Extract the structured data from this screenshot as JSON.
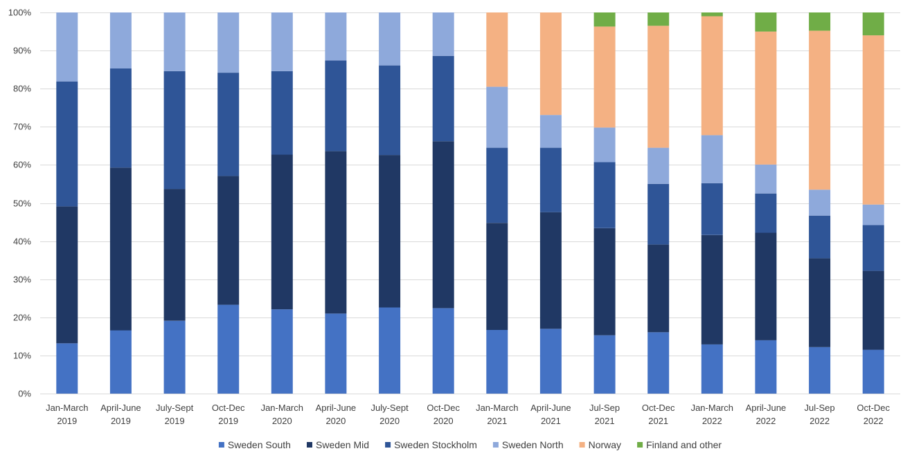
{
  "chart_data": {
    "type": "bar",
    "stacked": true,
    "percent_stacked": true,
    "categories": [
      [
        "Jan-March",
        "2019"
      ],
      [
        "April-June",
        "2019"
      ],
      [
        "July-Sept",
        "2019"
      ],
      [
        "Oct-Dec",
        "2019"
      ],
      [
        "Jan-March",
        "2020"
      ],
      [
        "April-June",
        "2020"
      ],
      [
        "July-Sept",
        "2020"
      ],
      [
        "Oct-Dec",
        "2020"
      ],
      [
        "Jan-March",
        "2021"
      ],
      [
        "April-June",
        "2021"
      ],
      [
        "Jul-Sep",
        "2021"
      ],
      [
        "Oct-Dec",
        "2021"
      ],
      [
        "Jan-March",
        "2022"
      ],
      [
        "April-June",
        "2022"
      ],
      [
        "Jul-Sep",
        "2022"
      ],
      [
        "Oct-Dec",
        "2022"
      ]
    ],
    "series": [
      {
        "name": "Sweden South",
        "color": "#4472C4",
        "values": [
          13.2,
          16.6,
          19.1,
          23.3,
          22.1,
          21.0,
          22.6,
          22.4,
          16.7,
          17.0,
          15.3,
          16.1,
          12.9,
          14.0,
          12.2,
          11.5
        ]
      },
      {
        "name": "Sweden Mid",
        "color": "#203864",
        "values": [
          35.9,
          42.7,
          34.6,
          33.8,
          40.6,
          42.6,
          40.0,
          43.8,
          28.1,
          30.6,
          28.1,
          23.0,
          28.7,
          28.2,
          23.3,
          20.7
        ]
      },
      {
        "name": "Sweden Stockholm",
        "color": "#2F5597",
        "values": [
          32.8,
          26.0,
          30.9,
          27.1,
          21.9,
          23.8,
          23.5,
          22.4,
          19.7,
          16.9,
          17.3,
          15.9,
          13.6,
          10.3,
          11.2,
          12.0
        ]
      },
      {
        "name": "Sweden North",
        "color": "#8EA9DB",
        "values": [
          18.1,
          14.7,
          15.4,
          15.8,
          15.4,
          12.6,
          13.9,
          11.4,
          16.0,
          8.6,
          9.1,
          9.5,
          12.6,
          7.6,
          6.8,
          5.4
        ]
      },
      {
        "name": "Norway",
        "color": "#F4B183",
        "values": [
          0,
          0,
          0,
          0,
          0,
          0,
          0,
          0,
          19.5,
          26.9,
          26.5,
          32.0,
          31.2,
          34.9,
          41.7,
          44.4
        ]
      },
      {
        "name": "Finland and other",
        "color": "#70AD47",
        "values": [
          0,
          0,
          0,
          0,
          0,
          0,
          0,
          0,
          0,
          0,
          3.7,
          3.5,
          1.0,
          5.0,
          4.8,
          6.0
        ]
      }
    ],
    "ylim": [
      0,
      100
    ],
    "yticks": [
      "0%",
      "10%",
      "20%",
      "30%",
      "40%",
      "50%",
      "60%",
      "70%",
      "80%",
      "90%",
      "100%"
    ],
    "grid": true,
    "legend_position": "bottom"
  }
}
